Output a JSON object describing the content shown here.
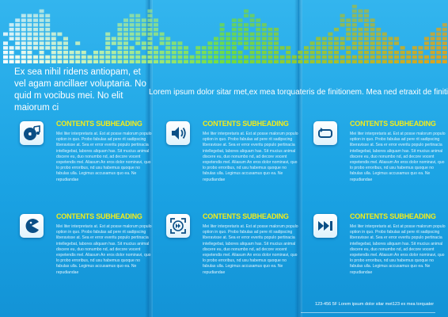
{
  "intro": {
    "left": "Ex sea nihil ridens antiopam, et vel agam ancillaer voluptaria. No quid m vocibus mei. No elit maiorum ci",
    "right": "Lorem ipsum dolor sitar met,ex mea torquateris de finitionem. Mea ned etraxit de finitiones"
  },
  "cards": [
    {
      "heading": "CONTENTS SUBHEADING",
      "icon": "music-note-disc-icon",
      "body": "Mei liter interpretaris at. Est at posse malorum populo option in quo. Probo fabulas ad pere rit sadipscing liberavisse at. Sea er error everitu populo pertinacia intellegebat, labores aliquam has. Sit mucius animal discere eu, duo nonumbo nd, ad decore vocent expetendis mel. Aliasum An eros dolor nominavi, quo lo probo erroribus, nd usu habemus quoque no fabulas ulla. Legimus accusamus quo ea. Ne repudiandae"
    },
    {
      "heading": "CONTENTS SUBHEADING",
      "icon": "speaker-icon",
      "body": "Mei liter interpretaris at. Est at posse malorum populo option in quo. Probo fabulas ad pere rit sadipscing liberavisse at. Sea er error everitu populo pertinacia intellegebat, labores aliquam has. Sit mucius animal discere eu, duo nonumbo nd, ad decore vocent expetendis mel. Aliasum An eros dolor nominavi, quo lo probo erroribus, nd usu habemus quoque no fabulas ulla. Legimus accusamus quo ea. Ne repudiandae"
    },
    {
      "heading": "CONTENTS SUBHEADING",
      "icon": "repeat-icon",
      "body": "Mei liter interpretaris at. Est at posse malorum populo option in quo. Probo fabulas ad pere rit sadipscing liberavisse at. Sea er error everitu populo pertinacia intellegebat, labores aliquam has. Sit mucius animal discere eu, duo nonumbo nd, ad decore vocent expetendis mel. Aliasum An eros dolor nominavi, quo lo probo erroribus, nd usu habemus quoque no fabulas ulla. Legimus accusamus quo ea. Ne repudiandae"
    },
    {
      "heading": "CONTENTS SUBHEADING",
      "icon": "pacman-icon",
      "body": "Mei liter interpretaris at. Est at posse malorum populo option in quo. Probo fabulas ad pere rit sadipscing liberavisse at. Sea er error everitu populo pertinacia intellegebat, labores aliquam has. Sit mucius animal discere eu, duo nonumbo nd, ad decore vocent expetendis mel. Aliasum An eros dolor nominavi, quo lo probo erroribus, nd usu habemus quoque no fabulas ulla. Legimus accusamus quo ea. Ne repudiandae"
    },
    {
      "heading": "CONTENTS SUBHEADING",
      "icon": "fast-forward-frame-icon",
      "body": "Mei liter interpretaris at. Est at posse malorum populo option in quo. Probo fabulas ad pere rit sadipscing liberavisse at. Sea er error everitu populo pertinacia intellegebat, labores aliquam has. Sit mucius animal discere eu, duo nonumbo nd, ad decore vocent expetendis mel. Aliasum An eros dolor nominavi, quo lo probo erroribus, nd usu habemus quoque no fabulas ulla. Legimus accusamus quo ea. Ne repudiandae"
    },
    {
      "heading": "CONTENTS SUBHEADING",
      "icon": "skip-forward-icon",
      "body": "Mei liter interpretaris at. Est at posse malorum populo option in quo. Probo fabulas ad pere rit sadipscing liberavisse at. Sea er error everitu populo pertinacia intellegebat, labores aliquam has. Sit mucius animal discere eu, duo nonumbo nd, ad decore vocent expetendis mel. Aliasum An eros dolor nominavi, quo lo probo erroribus, nd usu habemus quoque no fabulas ulla. Legimus accusamus quo ea. Ne repudiandae"
    }
  ],
  "footer": "123-456 5F Lorem ipsum dolor sitar met123 ex mea torquater",
  "colors": {
    "background": "#1aa3e4",
    "heading": "#f3ec19",
    "equalizer_start": "#ffffff",
    "equalizer_mid": "#6fdc3c",
    "equalizer_end": "#e0a11e",
    "icon": "#0b4f86"
  }
}
